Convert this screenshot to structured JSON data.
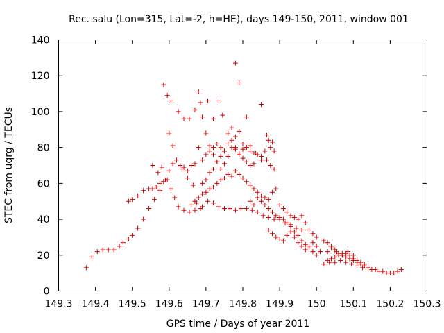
{
  "chart_data": {
    "type": "scatter",
    "title": "Rec. salu (Lon=315, Lat=-2, h=HE), days 149-150, 2011, window 001",
    "xlabel": "GPS time / Days of year 2011",
    "ylabel": "STEC from uqrg / TECUs",
    "xlim": [
      149.3,
      150.3
    ],
    "ylim": [
      0,
      140
    ],
    "xticks": [
      "149.3",
      "149.4",
      "149.5",
      "149.6",
      "149.7",
      "149.8",
      "149.9",
      "150",
      "150.1",
      "150.2",
      "150.3"
    ],
    "yticks": [
      "0",
      "20",
      "40",
      "60",
      "80",
      "100",
      "120",
      "140"
    ],
    "marker": "+",
    "color": "#cc0000",
    "series": [
      {
        "name": "STEC",
        "points": [
          [
            149.375,
            13
          ],
          [
            149.39,
            19
          ],
          [
            149.405,
            22
          ],
          [
            149.42,
            23
          ],
          [
            149.435,
            23
          ],
          [
            149.45,
            23
          ],
          [
            149.465,
            25
          ],
          [
            149.475,
            27
          ],
          [
            149.49,
            29
          ],
          [
            149.5,
            31
          ],
          [
            149.515,
            35
          ],
          [
            149.53,
            40
          ],
          [
            149.545,
            46
          ],
          [
            149.56,
            51
          ],
          [
            149.575,
            56
          ],
          [
            149.59,
            62
          ],
          [
            149.6,
            67
          ],
          [
            149.61,
            71
          ],
          [
            149.62,
            73
          ],
          [
            149.635,
            68
          ],
          [
            149.65,
            63
          ],
          [
            149.665,
            59
          ],
          [
            149.49,
            50
          ],
          [
            149.5,
            51
          ],
          [
            149.515,
            53
          ],
          [
            149.53,
            56
          ],
          [
            149.545,
            57
          ],
          [
            149.555,
            57
          ],
          [
            149.565,
            58
          ],
          [
            149.575,
            60
          ],
          [
            149.585,
            61
          ],
          [
            149.595,
            62
          ],
          [
            149.605,
            57
          ],
          [
            149.615,
            52
          ],
          [
            149.625,
            47
          ],
          [
            149.64,
            45
          ],
          [
            149.655,
            44
          ],
          [
            149.67,
            45
          ],
          [
            149.685,
            46
          ],
          [
            149.555,
            70
          ],
          [
            149.57,
            66
          ],
          [
            149.58,
            69
          ],
          [
            149.585,
            115
          ],
          [
            149.595,
            109
          ],
          [
            149.6,
            88
          ],
          [
            149.605,
            106
          ],
          [
            149.61,
            81
          ],
          [
            149.625,
            100
          ],
          [
            149.64,
            96
          ],
          [
            149.655,
            96
          ],
          [
            149.67,
            101
          ],
          [
            149.68,
            111
          ],
          [
            149.685,
            105
          ],
          [
            149.69,
            97
          ],
          [
            149.705,
            106
          ],
          [
            149.72,
            96
          ],
          [
            149.735,
            106
          ],
          [
            149.745,
            98
          ],
          [
            149.78,
            127
          ],
          [
            149.79,
            116
          ],
          [
            149.81,
            97
          ],
          [
            149.85,
            104
          ],
          [
            149.63,
            70
          ],
          [
            149.64,
            69
          ],
          [
            149.65,
            67
          ],
          [
            149.66,
            70
          ],
          [
            149.67,
            71
          ],
          [
            149.68,
            80
          ],
          [
            149.69,
            73
          ],
          [
            149.7,
            76
          ],
          [
            149.71,
            78
          ],
          [
            149.72,
            80
          ],
          [
            149.73,
            82
          ],
          [
            149.74,
            80
          ],
          [
            149.75,
            78
          ],
          [
            149.76,
            82
          ],
          [
            149.77,
            84
          ],
          [
            149.78,
            80
          ],
          [
            149.79,
            76
          ],
          [
            149.8,
            74
          ],
          [
            149.81,
            72
          ],
          [
            149.82,
            70
          ],
          [
            149.83,
            71
          ],
          [
            149.7,
            88
          ],
          [
            149.71,
            81
          ],
          [
            149.72,
            76
          ],
          [
            149.73,
            72
          ],
          [
            149.74,
            68
          ],
          [
            149.75,
            71
          ],
          [
            149.76,
            75
          ],
          [
            149.77,
            80
          ],
          [
            149.78,
            79
          ],
          [
            149.79,
            77
          ],
          [
            149.8,
            79
          ],
          [
            149.81,
            80
          ],
          [
            149.82,
            78
          ],
          [
            149.835,
            77
          ],
          [
            149.85,
            75
          ],
          [
            149.865,
            73
          ],
          [
            149.875,
            70
          ],
          [
            149.885,
            68
          ],
          [
            149.69,
            60
          ],
          [
            149.7,
            62
          ],
          [
            149.71,
            66
          ],
          [
            149.72,
            68
          ],
          [
            149.73,
            72
          ],
          [
            149.74,
            75
          ],
          [
            149.75,
            78
          ],
          [
            149.76,
            88
          ],
          [
            149.77,
            91
          ],
          [
            149.78,
            86
          ],
          [
            149.79,
            89
          ],
          [
            149.8,
            82
          ],
          [
            149.81,
            80
          ],
          [
            149.82,
            81
          ],
          [
            149.83,
            77
          ],
          [
            149.84,
            76
          ],
          [
            149.85,
            73
          ],
          [
            149.86,
            78
          ],
          [
            149.865,
            87
          ],
          [
            149.87,
            84
          ],
          [
            149.875,
            80
          ],
          [
            149.88,
            83
          ],
          [
            149.885,
            78
          ],
          [
            149.67,
            50
          ],
          [
            149.68,
            52
          ],
          [
            149.69,
            54
          ],
          [
            149.7,
            55
          ],
          [
            149.71,
            57
          ],
          [
            149.72,
            58
          ],
          [
            149.73,
            60
          ],
          [
            149.74,
            62
          ],
          [
            149.75,
            63
          ],
          [
            149.76,
            65
          ],
          [
            149.77,
            64
          ],
          [
            149.78,
            67
          ],
          [
            149.79,
            65
          ],
          [
            149.8,
            63
          ],
          [
            149.81,
            61
          ],
          [
            149.82,
            59
          ],
          [
            149.83,
            57
          ],
          [
            149.84,
            55
          ],
          [
            149.85,
            53
          ],
          [
            149.86,
            52
          ],
          [
            149.87,
            51
          ],
          [
            149.88,
            55
          ],
          [
            149.89,
            57
          ],
          [
            149.66,
            48
          ],
          [
            149.675,
            49
          ],
          [
            149.69,
            47
          ],
          [
            149.705,
            50
          ],
          [
            149.72,
            49
          ],
          [
            149.735,
            47
          ],
          [
            149.75,
            46
          ],
          [
            149.765,
            46
          ],
          [
            149.78,
            45
          ],
          [
            149.795,
            46
          ],
          [
            149.81,
            46
          ],
          [
            149.825,
            45
          ],
          [
            149.84,
            44
          ],
          [
            149.855,
            42
          ],
          [
            149.87,
            41
          ],
          [
            149.885,
            40
          ],
          [
            149.9,
            40
          ],
          [
            149.915,
            38
          ],
          [
            149.93,
            37
          ],
          [
            149.945,
            35
          ],
          [
            149.96,
            34
          ],
          [
            149.82,
            50
          ],
          [
            149.83,
            48
          ],
          [
            149.84,
            52
          ],
          [
            149.85,
            50
          ],
          [
            149.86,
            48
          ],
          [
            149.87,
            46
          ],
          [
            149.88,
            44
          ],
          [
            149.89,
            42
          ],
          [
            149.9,
            41
          ],
          [
            149.91,
            40
          ],
          [
            149.92,
            38
          ],
          [
            149.93,
            36
          ],
          [
            149.94,
            33
          ],
          [
            149.95,
            31
          ],
          [
            149.96,
            28
          ],
          [
            149.97,
            26
          ],
          [
            149.98,
            24
          ],
          [
            149.99,
            22
          ],
          [
            149.87,
            34
          ],
          [
            149.88,
            32
          ],
          [
            149.89,
            30
          ],
          [
            149.9,
            29
          ],
          [
            149.91,
            28
          ],
          [
            149.92,
            31
          ],
          [
            149.93,
            33
          ],
          [
            149.94,
            30
          ],
          [
            149.95,
            27
          ],
          [
            149.96,
            25
          ],
          [
            149.97,
            23
          ],
          [
            149.98,
            25
          ],
          [
            149.99,
            27
          ],
          [
            150.0,
            25
          ],
          [
            149.9,
            48
          ],
          [
            149.91,
            46
          ],
          [
            149.92,
            44
          ],
          [
            149.93,
            42
          ],
          [
            149.94,
            41
          ],
          [
            149.95,
            40
          ],
          [
            149.96,
            42
          ],
          [
            149.97,
            38
          ],
          [
            149.98,
            34
          ],
          [
            149.99,
            32
          ],
          [
            150.0,
            30
          ],
          [
            150.03,
            17
          ],
          [
            150.04,
            18
          ],
          [
            150.05,
            19
          ],
          [
            150.06,
            20
          ],
          [
            150.07,
            20
          ],
          [
            150.08,
            21
          ],
          [
            150.09,
            20
          ],
          [
            150.1,
            18
          ],
          [
            150.11,
            17
          ],
          [
            150.12,
            16
          ],
          [
            150.13,
            15
          ],
          [
            150.14,
            13
          ],
          [
            150.15,
            12
          ],
          [
            150.16,
            12
          ],
          [
            150.17,
            11
          ],
          [
            150.18,
            11
          ],
          [
            150.19,
            10
          ],
          [
            150.2,
            10
          ],
          [
            150.21,
            10
          ],
          [
            150.22,
            11
          ],
          [
            150.23,
            12
          ],
          [
            150.03,
            22
          ],
          [
            150.04,
            24
          ],
          [
            150.05,
            23
          ],
          [
            150.06,
            21
          ],
          [
            150.07,
            20
          ],
          [
            150.08,
            19
          ],
          [
            150.09,
            18
          ],
          [
            150.1,
            17
          ],
          [
            150.11,
            16
          ],
          [
            150.12,
            15
          ],
          [
            150.13,
            14
          ],
          [
            150.02,
            15
          ],
          [
            150.035,
            16
          ],
          [
            150.05,
            16
          ],
          [
            150.065,
            17
          ],
          [
            150.08,
            16
          ],
          [
            150.095,
            15
          ],
          [
            150.11,
            14
          ],
          [
            150.125,
            13
          ],
          [
            150.0,
            20
          ],
          [
            150.01,
            22
          ],
          [
            150.02,
            28
          ],
          [
            150.03,
            27
          ],
          [
            150.04,
            25
          ],
          [
            150.055,
            22
          ],
          [
            150.07,
            21
          ],
          [
            150.085,
            22
          ],
          [
            150.1,
            20
          ]
        ]
      }
    ]
  }
}
